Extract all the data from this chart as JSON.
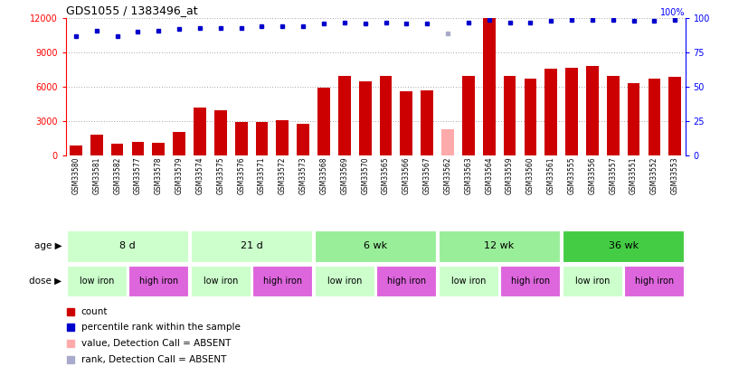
{
  "title": "GDS1055 / 1383496_at",
  "samples": [
    "GSM33580",
    "GSM33581",
    "GSM33582",
    "GSM33577",
    "GSM33578",
    "GSM33579",
    "GSM33574",
    "GSM33575",
    "GSM33576",
    "GSM33571",
    "GSM33572",
    "GSM33573",
    "GSM33568",
    "GSM33569",
    "GSM33570",
    "GSM33565",
    "GSM33566",
    "GSM33567",
    "GSM33562",
    "GSM33563",
    "GSM33564",
    "GSM33559",
    "GSM33560",
    "GSM33561",
    "GSM33555",
    "GSM33556",
    "GSM33557",
    "GSM33551",
    "GSM33552",
    "GSM33553"
  ],
  "counts": [
    900,
    1850,
    1050,
    1200,
    1150,
    2100,
    4200,
    4000,
    2900,
    2900,
    3100,
    2750,
    5900,
    7000,
    6500,
    7000,
    5600,
    5700,
    2300,
    7000,
    12000,
    7000,
    6700,
    7600,
    7700,
    7800,
    7000,
    6300,
    6700,
    6900
  ],
  "absent_indices": [
    18
  ],
  "percentile_ranks": [
    87,
    91,
    87,
    90,
    91,
    92,
    93,
    93,
    93,
    94,
    94,
    94,
    96,
    97,
    96,
    97,
    96,
    96,
    89,
    97,
    99,
    97,
    97,
    98,
    99,
    99,
    99,
    98,
    98,
    99
  ],
  "absent_rank_indices": [
    18
  ],
  "age_groups": [
    {
      "label": "8 d",
      "start": 0,
      "end": 6,
      "color": "#ccffcc"
    },
    {
      "label": "21 d",
      "start": 6,
      "end": 12,
      "color": "#ccffcc"
    },
    {
      "label": "6 wk",
      "start": 12,
      "end": 18,
      "color": "#99ee99"
    },
    {
      "label": "12 wk",
      "start": 18,
      "end": 24,
      "color": "#99ee99"
    },
    {
      "label": "36 wk",
      "start": 24,
      "end": 30,
      "color": "#44cc44"
    }
  ],
  "dose_groups": [
    {
      "label": "low iron",
      "start": 0,
      "end": 3,
      "color": "#ccffcc"
    },
    {
      "label": "high iron",
      "start": 3,
      "end": 6,
      "color": "#dd66dd"
    },
    {
      "label": "low iron",
      "start": 6,
      "end": 9,
      "color": "#ccffcc"
    },
    {
      "label": "high iron",
      "start": 9,
      "end": 12,
      "color": "#dd66dd"
    },
    {
      "label": "low iron",
      "start": 12,
      "end": 15,
      "color": "#ccffcc"
    },
    {
      "label": "high iron",
      "start": 15,
      "end": 18,
      "color": "#dd66dd"
    },
    {
      "label": "low iron",
      "start": 18,
      "end": 21,
      "color": "#ccffcc"
    },
    {
      "label": "high iron",
      "start": 21,
      "end": 24,
      "color": "#dd66dd"
    },
    {
      "label": "low iron",
      "start": 24,
      "end": 27,
      "color": "#ccffcc"
    },
    {
      "label": "high iron",
      "start": 27,
      "end": 30,
      "color": "#dd66dd"
    }
  ],
  "bar_color": "#cc0000",
  "absent_bar_color": "#ffaaaa",
  "rank_color": "#0000cc",
  "absent_rank_color": "#aaaacc",
  "ylim_left": [
    0,
    12000
  ],
  "ylim_right": [
    0,
    100
  ],
  "yticks_left": [
    0,
    3000,
    6000,
    9000,
    12000
  ],
  "yticks_right": [
    0,
    25,
    50,
    75,
    100
  ],
  "background_color": "#ffffff",
  "grid_color": "#555555"
}
